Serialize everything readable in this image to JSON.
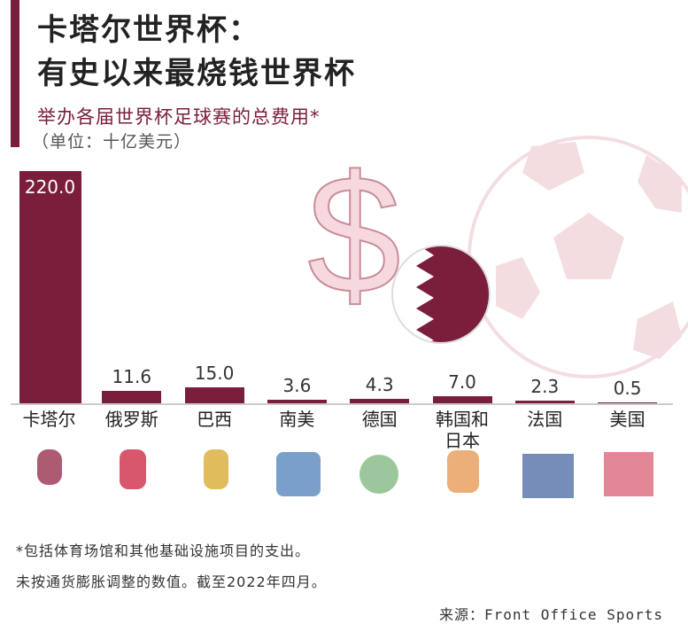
{
  "title": [
    "卡塔尔世界杯：",
    "有史以来最烧钱世界杯"
  ],
  "chart_data": {
    "type": "bar",
    "subtitle": "举办各届世界杯足球赛的总费用*",
    "unit": "（单位：十亿美元）",
    "categories": [
      "卡塔尔",
      "俄罗斯",
      "巴西",
      "南美",
      "德国",
      "韩国和\n日本",
      "法国",
      "美国"
    ],
    "values": [
      220.0,
      11.6,
      15.0,
      3.6,
      4.3,
      7.0,
      2.3,
      0.5
    ],
    "value_labels": [
      "220.0",
      "11.6",
      "15.0",
      "3.6",
      "4.3",
      "7.0",
      "2.3",
      "0.5"
    ],
    "color": "#7b1e3c"
  },
  "notes": [
    "*包括体育场馆和其他基础设施项目的支出。",
    "未按通货膨胀调整的数值。截至2022年四月。"
  ],
  "source": "来源：Front Office Sports"
}
